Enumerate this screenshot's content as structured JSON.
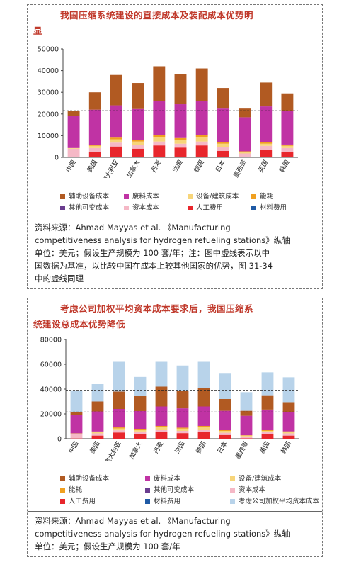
{
  "colors": {
    "auxiliary": "#b15a22",
    "waste": "#c033a4",
    "equipment": "#f7d57a",
    "energy": "#f0a020",
    "other_variable": "#6a3d8f",
    "capital": "#f5b8c6",
    "labor": "#e8262c",
    "material": "#1f5aa5",
    "wacc": "#b8d3ea",
    "title": "#c0392b"
  },
  "panel1": {
    "title_line1": "我国压缩系统建设的直接成本及装配成本优势明",
    "title_line2": "显",
    "legend": [
      {
        "key": "auxiliary",
        "label": "辅助设备成本"
      },
      {
        "key": "waste",
        "label": "废料成本"
      },
      {
        "key": "equipment",
        "label": "设备/建筑成本"
      },
      {
        "key": "energy",
        "label": "能耗"
      },
      {
        "key": "other_variable",
        "label": "其他可变成本"
      },
      {
        "key": "capital",
        "label": "资本成本"
      },
      {
        "key": "labor",
        "label": "人工费用"
      },
      {
        "key": "material",
        "label": "材料费用"
      }
    ],
    "source_lines": [
      "资料来源：Ahmad Mayyas et al. 《Manufacturing",
      "competitiveness analysis for hydrogen refueling stations》纵轴",
      "单位：美元；假设生产规模为 100 套/年；注：图中虚线表示以中",
      "国数据为基准，以比较中国在成本上较其他国家的优势，图 31-34",
      "中的虚线同理"
    ]
  },
  "panel2": {
    "title_line1": "考虑公司加权平均资本成本要求后，我国压缩系",
    "title_line2": "统建设总成本优势降低",
    "legend": [
      {
        "key": "auxiliary",
        "label": "辅助设备成本"
      },
      {
        "key": "waste",
        "label": "废料成本"
      },
      {
        "key": "equipment",
        "label": "设备/建筑成本"
      },
      {
        "key": "energy",
        "label": "能耗"
      },
      {
        "key": "other_variable",
        "label": "其他可变成本"
      },
      {
        "key": "capital",
        "label": "资本成本"
      },
      {
        "key": "labor",
        "label": "人工费用"
      },
      {
        "key": "material",
        "label": "材料费用"
      },
      {
        "key": "wacc",
        "label": "考虑公司加权平均资本成本"
      }
    ],
    "source_lines": [
      "资料来源：Ahmad Mayyas et al. 《Manufacturing",
      "competitiveness analysis for hydrogen refueling stations》纵轴",
      "单位：美元；假设生产规模为 100 套/年"
    ]
  },
  "chart_data": [
    {
      "type": "bar",
      "stacked": true,
      "categories": [
        "中国",
        "美国",
        "澳大利亚",
        "加拿大",
        "丹麦",
        "法国",
        "德国",
        "日本",
        "墨西哥",
        "英国",
        "韩国"
      ],
      "ylim": [
        0,
        50000
      ],
      "yticks": [
        0,
        10000,
        20000,
        30000,
        40000,
        50000
      ],
      "reference_line": 21500,
      "series": [
        {
          "name": "人工费用",
          "key": "labor",
          "values": [
            200,
            2500,
            5000,
            4000,
            5500,
            4500,
            5500,
            3000,
            300,
            3500,
            2500
          ]
        },
        {
          "name": "资本成本",
          "key": "capital",
          "values": [
            3800,
            1800,
            1800,
            1800,
            1800,
            1800,
            1800,
            1800,
            1500,
            1800,
            1800
          ]
        },
        {
          "name": "设备/建筑成本",
          "key": "equipment",
          "values": [
            300,
            1000,
            1500,
            1500,
            2000,
            1800,
            2000,
            1500,
            700,
            1000,
            1000
          ]
        },
        {
          "name": "能耗",
          "key": "energy",
          "values": [
            0,
            500,
            800,
            700,
            1000,
            800,
            1000,
            700,
            300,
            700,
            600
          ]
        },
        {
          "name": "废料成本",
          "key": "waste",
          "values": [
            14800,
            16200,
            14900,
            14300,
            15700,
            15600,
            15700,
            15500,
            15700,
            16500,
            15600
          ]
        },
        {
          "name": "辅助设备成本",
          "key": "auxiliary",
          "values": [
            2400,
            8000,
            14000,
            12000,
            16000,
            14000,
            15000,
            9500,
            4000,
            11000,
            8000
          ]
        }
      ]
    },
    {
      "type": "bar",
      "stacked": true,
      "categories": [
        "中国",
        "美国",
        "澳大利亚",
        "加拿大",
        "丹麦",
        "法国",
        "德国",
        "日本",
        "墨西哥",
        "英国",
        "韩国"
      ],
      "ylim": [
        0,
        80000
      ],
      "yticks": [
        0,
        20000,
        40000,
        60000,
        80000
      ],
      "reference_lines": [
        21500,
        39000
      ],
      "series": [
        {
          "name": "人工费用",
          "key": "labor",
          "values": [
            200,
            2500,
            5000,
            4000,
            5500,
            4500,
            5500,
            3000,
            300,
            3500,
            2500
          ]
        },
        {
          "name": "资本成本",
          "key": "capital",
          "values": [
            3800,
            1800,
            1800,
            1800,
            1800,
            1800,
            1800,
            1800,
            1500,
            1800,
            1800
          ]
        },
        {
          "name": "设备/建筑成本",
          "key": "equipment",
          "values": [
            300,
            1000,
            1500,
            1500,
            2000,
            1800,
            2000,
            1500,
            700,
            1000,
            1000
          ]
        },
        {
          "name": "能耗",
          "key": "energy",
          "values": [
            0,
            500,
            800,
            700,
            1000,
            800,
            1000,
            700,
            300,
            700,
            600
          ]
        },
        {
          "name": "废料成本",
          "key": "waste",
          "values": [
            14800,
            16200,
            14900,
            14300,
            15700,
            15600,
            15700,
            15500,
            15700,
            16500,
            15600
          ]
        },
        {
          "name": "辅助设备成本",
          "key": "auxiliary",
          "values": [
            2400,
            8000,
            14000,
            12000,
            16000,
            14000,
            15000,
            9500,
            4000,
            11000,
            8000
          ]
        },
        {
          "name": "考虑公司加权平均资本成本",
          "key": "wacc",
          "values": [
            17500,
            14000,
            24000,
            15500,
            20000,
            20500,
            21000,
            21000,
            15000,
            19000,
            20000
          ]
        }
      ]
    }
  ]
}
